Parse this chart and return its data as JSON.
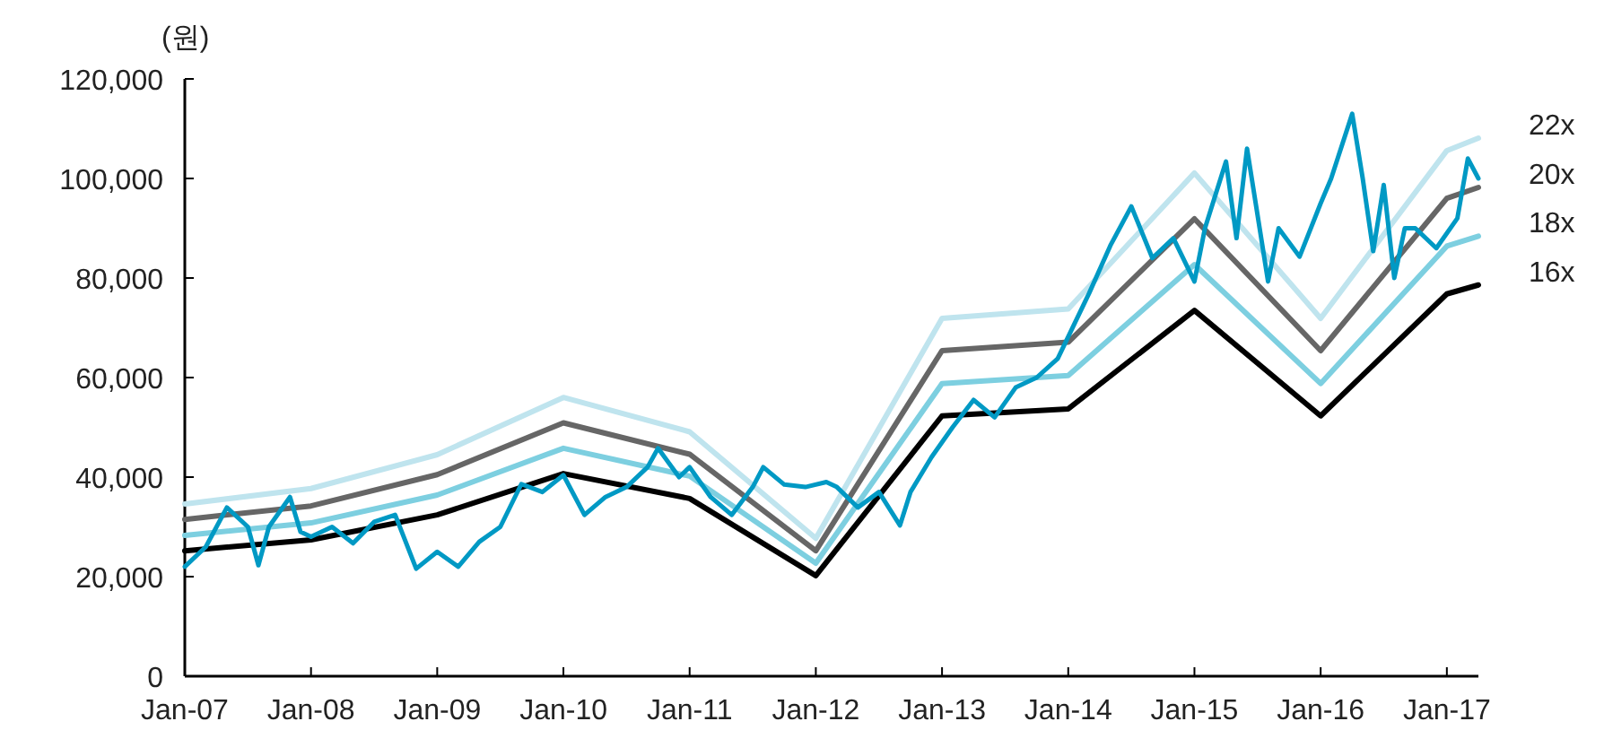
{
  "chart_data": {
    "type": "line",
    "ylabel": "(원)",
    "legend": "right",
    "grid": false,
    "marker": "none",
    "line_style": "solid",
    "xlim": [
      "2007-01",
      "2017-04"
    ],
    "xticks": [
      {
        "value": "2007-01",
        "label": "Jan-07"
      },
      {
        "value": "2008-01",
        "label": "Jan-08"
      },
      {
        "value": "2009-01",
        "label": "Jan-09"
      },
      {
        "value": "2010-01",
        "label": "Jan-10"
      },
      {
        "value": "2011-01",
        "label": "Jan-11"
      },
      {
        "value": "2012-01",
        "label": "Jan-12"
      },
      {
        "value": "2013-01",
        "label": "Jan-13"
      },
      {
        "value": "2014-01",
        "label": "Jan-14"
      },
      {
        "value": "2015-01",
        "label": "Jan-15"
      },
      {
        "value": "2016-01",
        "label": "Jan-16"
      },
      {
        "value": "2017-01",
        "label": "Jan-17"
      }
    ],
    "ylim": [
      0,
      120000
    ],
    "yticks": [
      {
        "value": 0,
        "label": "0"
      },
      {
        "value": 20000,
        "label": "20,000"
      },
      {
        "value": 40000,
        "label": "40,000"
      },
      {
        "value": 60000,
        "label": "60,000"
      },
      {
        "value": 80000,
        "label": "80,000"
      },
      {
        "value": 100000,
        "label": "100,000"
      },
      {
        "value": 120000,
        "label": "120,000"
      }
    ],
    "series": [
      {
        "color": "#0099c4",
        "x": [
          "2007-01",
          "2007-03",
          "2007-05",
          "2007-07",
          "2007-08",
          "2007-09",
          "2007-11",
          "2007-12",
          "2008-01",
          "2008-03",
          "2008-05",
          "2008-07",
          "2008-09",
          "2008-11",
          "2009-01",
          "2009-03",
          "2009-05",
          "2009-07",
          "2009-09",
          "2009-11",
          "2010-01",
          "2010-03",
          "2010-05",
          "2010-07",
          "2010-09",
          "2010-10",
          "2010-12",
          "2011-01",
          "2011-03",
          "2011-05",
          "2011-07",
          "2011-08",
          "2011-10",
          "2011-12",
          "2012-02",
          "2012-03",
          "2012-05",
          "2012-07",
          "2012-09",
          "2012-10",
          "2012-12",
          "2013-02",
          "2013-04",
          "2013-06",
          "2013-08",
          "2013-10",
          "2013-12",
          "2014-03",
          "2014-05",
          "2014-07",
          "2014-09",
          "2014-11",
          "2015-01",
          "2015-02",
          "2015-04",
          "2015-05",
          "2015-06",
          "2015-08",
          "2015-09",
          "2015-11",
          "2016-01",
          "2016-02",
          "2016-04",
          "2016-05",
          "2016-06",
          "2016-07",
          "2016-08",
          "2016-09",
          "2016-10",
          "2016-12",
          "2017-02",
          "2017-03",
          "2017-04"
        ],
        "values": [
          22000,
          26000,
          33900,
          30000,
          22300,
          30000,
          36000,
          29000,
          28000,
          30000,
          26700,
          31000,
          32400,
          21600,
          25000,
          22000,
          27000,
          30000,
          38600,
          37000,
          40400,
          32400,
          36000,
          38000,
          42000,
          45800,
          40000,
          42000,
          36000,
          32400,
          38000,
          42000,
          38500,
          38000,
          39000,
          38000,
          33900,
          37000,
          30300,
          37000,
          44000,
          50000,
          55500,
          52000,
          58000,
          60000,
          63800,
          77000,
          86500,
          94400,
          84000,
          88000,
          79300,
          90000,
          103400,
          88000,
          106000,
          79300,
          90000,
          84300,
          95000,
          100000,
          113000,
          100000,
          85400,
          98700,
          80000,
          90000,
          90000,
          86000,
          92000,
          104000,
          100000
        ]
      },
      {
        "name": "22x",
        "color": "#bfe4ee",
        "x": [
          "2007-01",
          "2008-01",
          "2009-01",
          "2010-01",
          "2011-01",
          "2012-01",
          "2013-01",
          "2014-01",
          "2015-01",
          "2016-01",
          "2017-01",
          "2017-04"
        ],
        "values": [
          34600,
          37700,
          44500,
          56000,
          49100,
          27700,
          71900,
          73800,
          101100,
          71900,
          105600,
          108100
        ]
      },
      {
        "name": "20x",
        "color": "#666666",
        "x": [
          "2007-01",
          "2008-01",
          "2009-01",
          "2010-01",
          "2011-01",
          "2012-01",
          "2013-01",
          "2014-01",
          "2015-01",
          "2016-01",
          "2017-01",
          "2017-04"
        ],
        "values": [
          31500,
          34200,
          40500,
          50900,
          44600,
          25200,
          65400,
          67100,
          91900,
          65400,
          96000,
          98200
        ]
      },
      {
        "name": "18x",
        "color": "#7dcfe0",
        "x": [
          "2007-01",
          "2008-01",
          "2009-01",
          "2010-01",
          "2011-01",
          "2012-01",
          "2013-01",
          "2014-01",
          "2015-01",
          "2016-01",
          "2017-01",
          "2017-04"
        ],
        "values": [
          28300,
          30800,
          36400,
          45800,
          40200,
          22700,
          58800,
          60400,
          82700,
          58800,
          86400,
          88400
        ]
      },
      {
        "name": "16x",
        "color": "#000000",
        "x": [
          "2007-01",
          "2008-01",
          "2009-01",
          "2010-01",
          "2011-01",
          "2012-01",
          "2013-01",
          "2014-01",
          "2015-01",
          "2016-01",
          "2017-01",
          "2017-04"
        ],
        "values": [
          25200,
          27400,
          32400,
          40700,
          35700,
          20200,
          52300,
          53700,
          73500,
          52300,
          76800,
          78600
        ]
      }
    ]
  }
}
